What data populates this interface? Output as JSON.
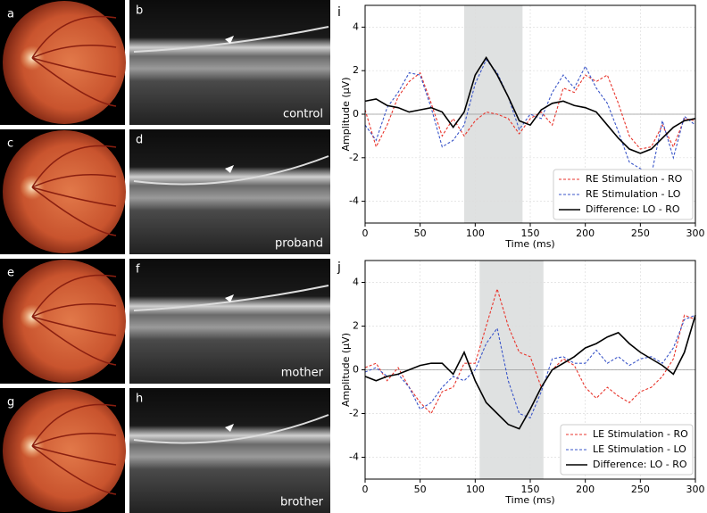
{
  "panels": [
    {
      "fundus_label": "a",
      "oct_label": "b",
      "caption": "control"
    },
    {
      "fundus_label": "c",
      "oct_label": "d",
      "caption": "proband"
    },
    {
      "fundus_label": "e",
      "oct_label": "f",
      "caption": "mother"
    },
    {
      "fundus_label": "g",
      "oct_label": "h",
      "caption": "brother"
    }
  ],
  "chart_data": [
    {
      "type": "line",
      "panel_label": "i",
      "xlabel": "Time (ms)",
      "ylabel": "Amplitude (μV)",
      "xlim": [
        0,
        300
      ],
      "ylim": [
        -5,
        5
      ],
      "xticks": [
        0,
        50,
        100,
        150,
        200,
        250,
        300
      ],
      "yticks": [
        -4,
        -2,
        0,
        2,
        4
      ],
      "grid": true,
      "legend": "lower right",
      "shaded_region": [
        90,
        143
      ],
      "x": [
        0,
        10,
        20,
        30,
        40,
        50,
        60,
        70,
        80,
        90,
        100,
        110,
        120,
        130,
        140,
        150,
        160,
        170,
        180,
        190,
        200,
        210,
        220,
        230,
        240,
        250,
        260,
        270,
        280,
        290,
        300
      ],
      "series": [
        {
          "name": "RE Stimulation - RO",
          "color": "#e8352c",
          "linestyle": "dashed",
          "values": [
            0.2,
            -1.5,
            -0.5,
            0.8,
            1.5,
            1.9,
            0.5,
            -1.0,
            -0.2,
            -1.0,
            -0.3,
            0.1,
            0.0,
            -0.2,
            -0.9,
            -0.2,
            0.1,
            -0.5,
            1.2,
            1.0,
            1.8,
            1.5,
            1.8,
            0.5,
            -1.0,
            -1.6,
            -1.5,
            -0.5,
            -1.5,
            -0.2,
            -0.3
          ]
        },
        {
          "name": "RE Stimulation - LO",
          "color": "#3a55c8",
          "linestyle": "dashed",
          "values": [
            -0.5,
            -1.2,
            0.3,
            1.0,
            1.9,
            1.8,
            0.3,
            -1.5,
            -1.2,
            -0.5,
            1.4,
            2.5,
            1.9,
            0.8,
            -0.7,
            0.0,
            -0.2,
            1.0,
            1.8,
            1.2,
            2.2,
            1.2,
            0.5,
            -0.8,
            -2.2,
            -2.5,
            -2.8,
            -0.3,
            -2.0,
            -0.1,
            -0.5
          ]
        },
        {
          "name": "Difference: LO - RO",
          "color": "#000000",
          "linestyle": "solid",
          "values": [
            0.6,
            0.7,
            0.4,
            0.3,
            0.1,
            0.2,
            0.3,
            0.1,
            -0.6,
            0.1,
            1.8,
            2.6,
            1.8,
            0.8,
            -0.3,
            -0.5,
            0.2,
            0.5,
            0.6,
            0.4,
            0.3,
            0.1,
            -0.5,
            -1.1,
            -1.6,
            -1.8,
            -1.6,
            -1.1,
            -0.6,
            -0.3,
            -0.2
          ]
        }
      ]
    },
    {
      "type": "line",
      "panel_label": "j",
      "xlabel": "Time (ms)",
      "ylabel": "Amplitude (μV)",
      "xlim": [
        0,
        300
      ],
      "ylim": [
        -5,
        5
      ],
      "xticks": [
        0,
        50,
        100,
        150,
        200,
        250,
        300
      ],
      "yticks": [
        -4,
        -2,
        0,
        2,
        4
      ],
      "grid": true,
      "legend": "lower right",
      "shaded_region": [
        104,
        162
      ],
      "x": [
        0,
        10,
        20,
        30,
        40,
        50,
        60,
        70,
        80,
        90,
        100,
        110,
        120,
        130,
        140,
        150,
        160,
        170,
        180,
        190,
        200,
        210,
        220,
        230,
        240,
        250,
        260,
        270,
        280,
        290,
        300
      ],
      "series": [
        {
          "name": "LE Stimulation - RO",
          "color": "#e8352c",
          "linestyle": "dashed",
          "values": [
            0.1,
            0.3,
            -0.5,
            0.1,
            -0.8,
            -1.5,
            -2.0,
            -1.0,
            -0.8,
            0.3,
            0.3,
            2.0,
            3.7,
            2.0,
            0.8,
            0.6,
            -0.8,
            0.0,
            0.5,
            0.2,
            -0.8,
            -1.3,
            -0.8,
            -1.2,
            -1.5,
            -1.0,
            -0.8,
            -0.3,
            0.5,
            2.5,
            2.3
          ]
        },
        {
          "name": "LE Stimulation - LO",
          "color": "#3a55c8",
          "linestyle": "dashed",
          "values": [
            -0.1,
            0.1,
            -0.3,
            -0.2,
            -0.8,
            -1.8,
            -1.5,
            -0.8,
            -0.3,
            -0.5,
            0.0,
            1.2,
            1.9,
            -0.5,
            -2.0,
            -2.2,
            -1.0,
            0.5,
            0.6,
            0.3,
            0.3,
            0.9,
            0.3,
            0.6,
            0.2,
            0.5,
            0.6,
            0.3,
            1.0,
            2.3,
            2.5
          ]
        },
        {
          "name": "Difference: LO - RO",
          "color": "#000000",
          "linestyle": "solid",
          "values": [
            -0.3,
            -0.5,
            -0.3,
            -0.2,
            0.0,
            0.2,
            0.3,
            0.3,
            -0.2,
            0.8,
            -0.5,
            -1.5,
            -2.0,
            -2.5,
            -2.7,
            -1.8,
            -0.8,
            0.0,
            0.3,
            0.6,
            1.0,
            1.2,
            1.5,
            1.7,
            1.2,
            0.8,
            0.5,
            0.2,
            -0.2,
            0.8,
            2.5
          ]
        }
      ]
    }
  ]
}
